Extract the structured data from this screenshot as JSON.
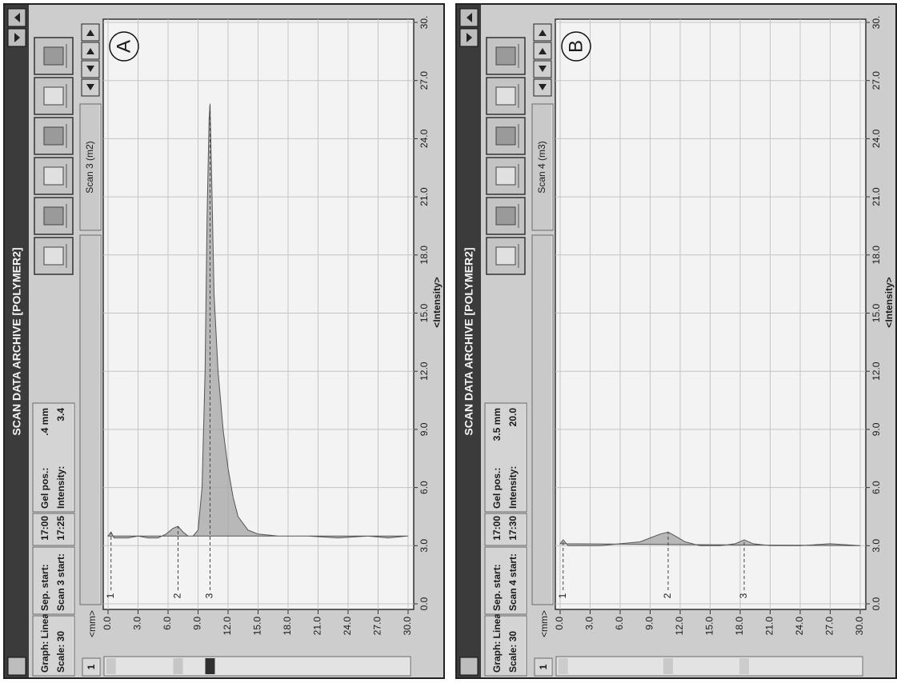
{
  "panels": [
    {
      "letter": "A",
      "window_title": "SCAN DATA ARCHIVE [POLYMER2]",
      "toolbar": {
        "graph": "Graph: Linear",
        "scale": "Scale: 30",
        "sep_start_label": "Sep. start:",
        "scan_start_label": "Scan 3 start:",
        "sep_start": "17:00",
        "scan_start": "17:25",
        "gel_pos_label": "Gel pos.:",
        "intensity_label": "Intensity:",
        "gel_pos": ".4 mm",
        "intensity": "3.4"
      },
      "scan_label": "Scan 3 (m2)",
      "lane_number": "1",
      "chart_data": {
        "type": "line",
        "x_label": "<mm>",
        "y_label": "<Intensity>",
        "x": [
          0,
          0.3,
          0.6,
          1,
          2,
          3,
          4,
          5,
          5.8,
          6.5,
          7,
          7.5,
          8,
          8.5,
          9,
          9.4,
          9.7,
          9.9,
          10.1,
          10.2,
          10.4,
          10.6,
          11,
          11.5,
          12,
          12.5,
          13,
          14,
          15,
          17,
          20,
          23,
          26,
          28,
          30
        ],
        "values": [
          3.5,
          3.7,
          3.4,
          3.4,
          3.4,
          3.5,
          3.4,
          3.4,
          3.6,
          3.9,
          4.0,
          3.7,
          3.5,
          3.5,
          3.8,
          6,
          12,
          20,
          25,
          25.8,
          21,
          16,
          12,
          9,
          7,
          5.5,
          4.5,
          3.8,
          3.6,
          3.5,
          3.5,
          3.4,
          3.5,
          3.4,
          3.5
        ],
        "xlim": [
          0,
          30
        ],
        "xticks": [
          {
            "value": 0,
            "label": "0.0"
          },
          {
            "value": 3,
            "label": "3.0"
          },
          {
            "value": 6,
            "label": "6.0"
          },
          {
            "value": 9,
            "label": "9.0"
          },
          {
            "value": 12,
            "label": "12.0"
          },
          {
            "value": 15,
            "label": "15.0"
          },
          {
            "value": 18,
            "label": "18.0"
          },
          {
            "value": 21,
            "label": "21.0"
          },
          {
            "value": 24,
            "label": "24.0"
          },
          {
            "value": 27,
            "label": "27.0"
          },
          {
            "value": 30,
            "label": "30.0"
          }
        ],
        "ylim": [
          0,
          30
        ],
        "yticks": [
          {
            "value": 0,
            "label": "0.0"
          },
          {
            "value": 3,
            "label": "3.0"
          },
          {
            "value": 6,
            "label": "6.0"
          },
          {
            "value": 9,
            "label": "9.0"
          },
          {
            "value": 12,
            "label": "12.0"
          },
          {
            "value": 15,
            "label": "15.0"
          },
          {
            "value": 18,
            "label": "18.0"
          },
          {
            "value": 21,
            "label": "21.0"
          },
          {
            "value": 24,
            "label": "24.0"
          },
          {
            "value": 27,
            "label": "27.0"
          },
          {
            "value": 30,
            "label": "30."
          }
        ],
        "grid": true,
        "color": "#555555",
        "peaks": [
          {
            "label": "1",
            "x": 0.3,
            "value": 3.7
          },
          {
            "label": "2",
            "x": 7,
            "value": 4.0
          },
          {
            "label": "3",
            "x": 10.2,
            "value": 25.8
          }
        ]
      }
    },
    {
      "letter": "B",
      "window_title": "SCAN DATA ARCHIVE [POLYMER2]",
      "toolbar": {
        "graph": "Graph: Linear",
        "scale": "Scale: 30",
        "sep_start_label": "Sep. start:",
        "scan_start_label": "Scan 4 start:",
        "sep_start": "17:00",
        "scan_start": "17:30",
        "gel_pos_label": "Gel pos.:",
        "intensity_label": "Intensity:",
        "gel_pos": "3.5 mm",
        "intensity": "20.0"
      },
      "scan_label": "Scan 4 (m3)",
      "lane_number": "1",
      "chart_data": {
        "type": "line",
        "x_label": "<mm>",
        "y_label": "<Intensity>",
        "x": [
          0,
          0.3,
          0.8,
          2,
          4,
          6,
          8,
          9,
          10,
          10.8,
          11.5,
          12.5,
          14,
          16,
          17.5,
          18.4,
          19.3,
          21,
          24,
          27,
          30
        ],
        "values": [
          3.1,
          3.3,
          3.0,
          3.0,
          3.0,
          3.1,
          3.2,
          3.4,
          3.6,
          3.7,
          3.5,
          3.2,
          3.0,
          3.0,
          3.1,
          3.3,
          3.1,
          3.0,
          3.0,
          3.1,
          3.0
        ],
        "xlim": [
          0,
          30
        ],
        "xticks": [
          {
            "value": 0,
            "label": "0.0"
          },
          {
            "value": 3,
            "label": "3.0"
          },
          {
            "value": 6,
            "label": "6.0"
          },
          {
            "value": 9,
            "label": "9.0"
          },
          {
            "value": 12,
            "label": "12.0"
          },
          {
            "value": 15,
            "label": "15.0"
          },
          {
            "value": 18,
            "label": "18.0"
          },
          {
            "value": 21,
            "label": "21.0"
          },
          {
            "value": 24,
            "label": "24.0"
          },
          {
            "value": 27,
            "label": "27.0"
          },
          {
            "value": 30,
            "label": "30.0"
          }
        ],
        "ylim": [
          0,
          30
        ],
        "yticks": [
          {
            "value": 0,
            "label": "0.0"
          },
          {
            "value": 3,
            "label": "3.0"
          },
          {
            "value": 6,
            "label": "6.0"
          },
          {
            "value": 9,
            "label": "9.0"
          },
          {
            "value": 12,
            "label": "12.0"
          },
          {
            "value": 15,
            "label": "15.0"
          },
          {
            "value": 18,
            "label": "18.0"
          },
          {
            "value": 21,
            "label": "21.0"
          },
          {
            "value": 24,
            "label": "24.0"
          },
          {
            "value": 27,
            "label": "27.0"
          },
          {
            "value": 30,
            "label": "30."
          }
        ],
        "grid": true,
        "color": "#555555",
        "peaks": [
          {
            "label": "1",
            "x": 0.3,
            "value": 3.3
          },
          {
            "label": "2",
            "x": 10.8,
            "value": 3.7
          },
          {
            "label": "3",
            "x": 18.4,
            "value": 3.3
          }
        ]
      }
    }
  ]
}
